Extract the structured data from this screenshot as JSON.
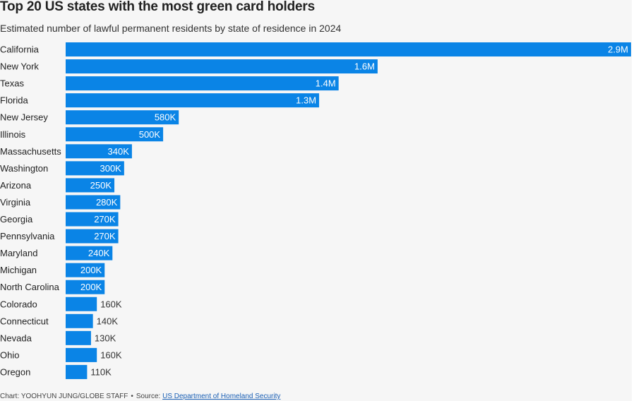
{
  "chart_data": {
    "type": "bar",
    "orientation": "horizontal",
    "title": "Top 20 US states with the most green card holders",
    "subtitle": "Estimated number of lawful permanent residents by state of residence in 2024",
    "categories": [
      "California",
      "New York",
      "Texas",
      "Florida",
      "New Jersey",
      "Illinois",
      "Massachusetts",
      "Washington",
      "Arizona",
      "Virginia",
      "Georgia",
      "Pennsylvania",
      "Maryland",
      "Michigan",
      "North Carolina",
      "Colorado",
      "Connecticut",
      "Nevada",
      "Ohio",
      "Oregon"
    ],
    "values": [
      2900000,
      1600000,
      1400000,
      1300000,
      580000,
      500000,
      340000,
      300000,
      250000,
      280000,
      270000,
      270000,
      240000,
      200000,
      200000,
      160000,
      140000,
      130000,
      160000,
      110000
    ],
    "value_labels": [
      "2.9M",
      "1.6M",
      "1.4M",
      "1.3M",
      "580K",
      "500K",
      "340K",
      "300K",
      "250K",
      "280K",
      "270K",
      "270K",
      "240K",
      "200K",
      "200K",
      "160K",
      "140K",
      "130K",
      "160K",
      "110K"
    ],
    "xlim": [
      0,
      2900000
    ],
    "bar_color": "#0a84e6",
    "label_inside_color": "#ffffff",
    "label_outside_color": "#333333",
    "grid": false,
    "legend": "none"
  },
  "footer": {
    "credit": "Chart: YOOHYUN JUNG/GLOBE STAFF",
    "separator": "•",
    "source_prefix": "Source:",
    "source_link": "US Department of Homeland Security"
  }
}
